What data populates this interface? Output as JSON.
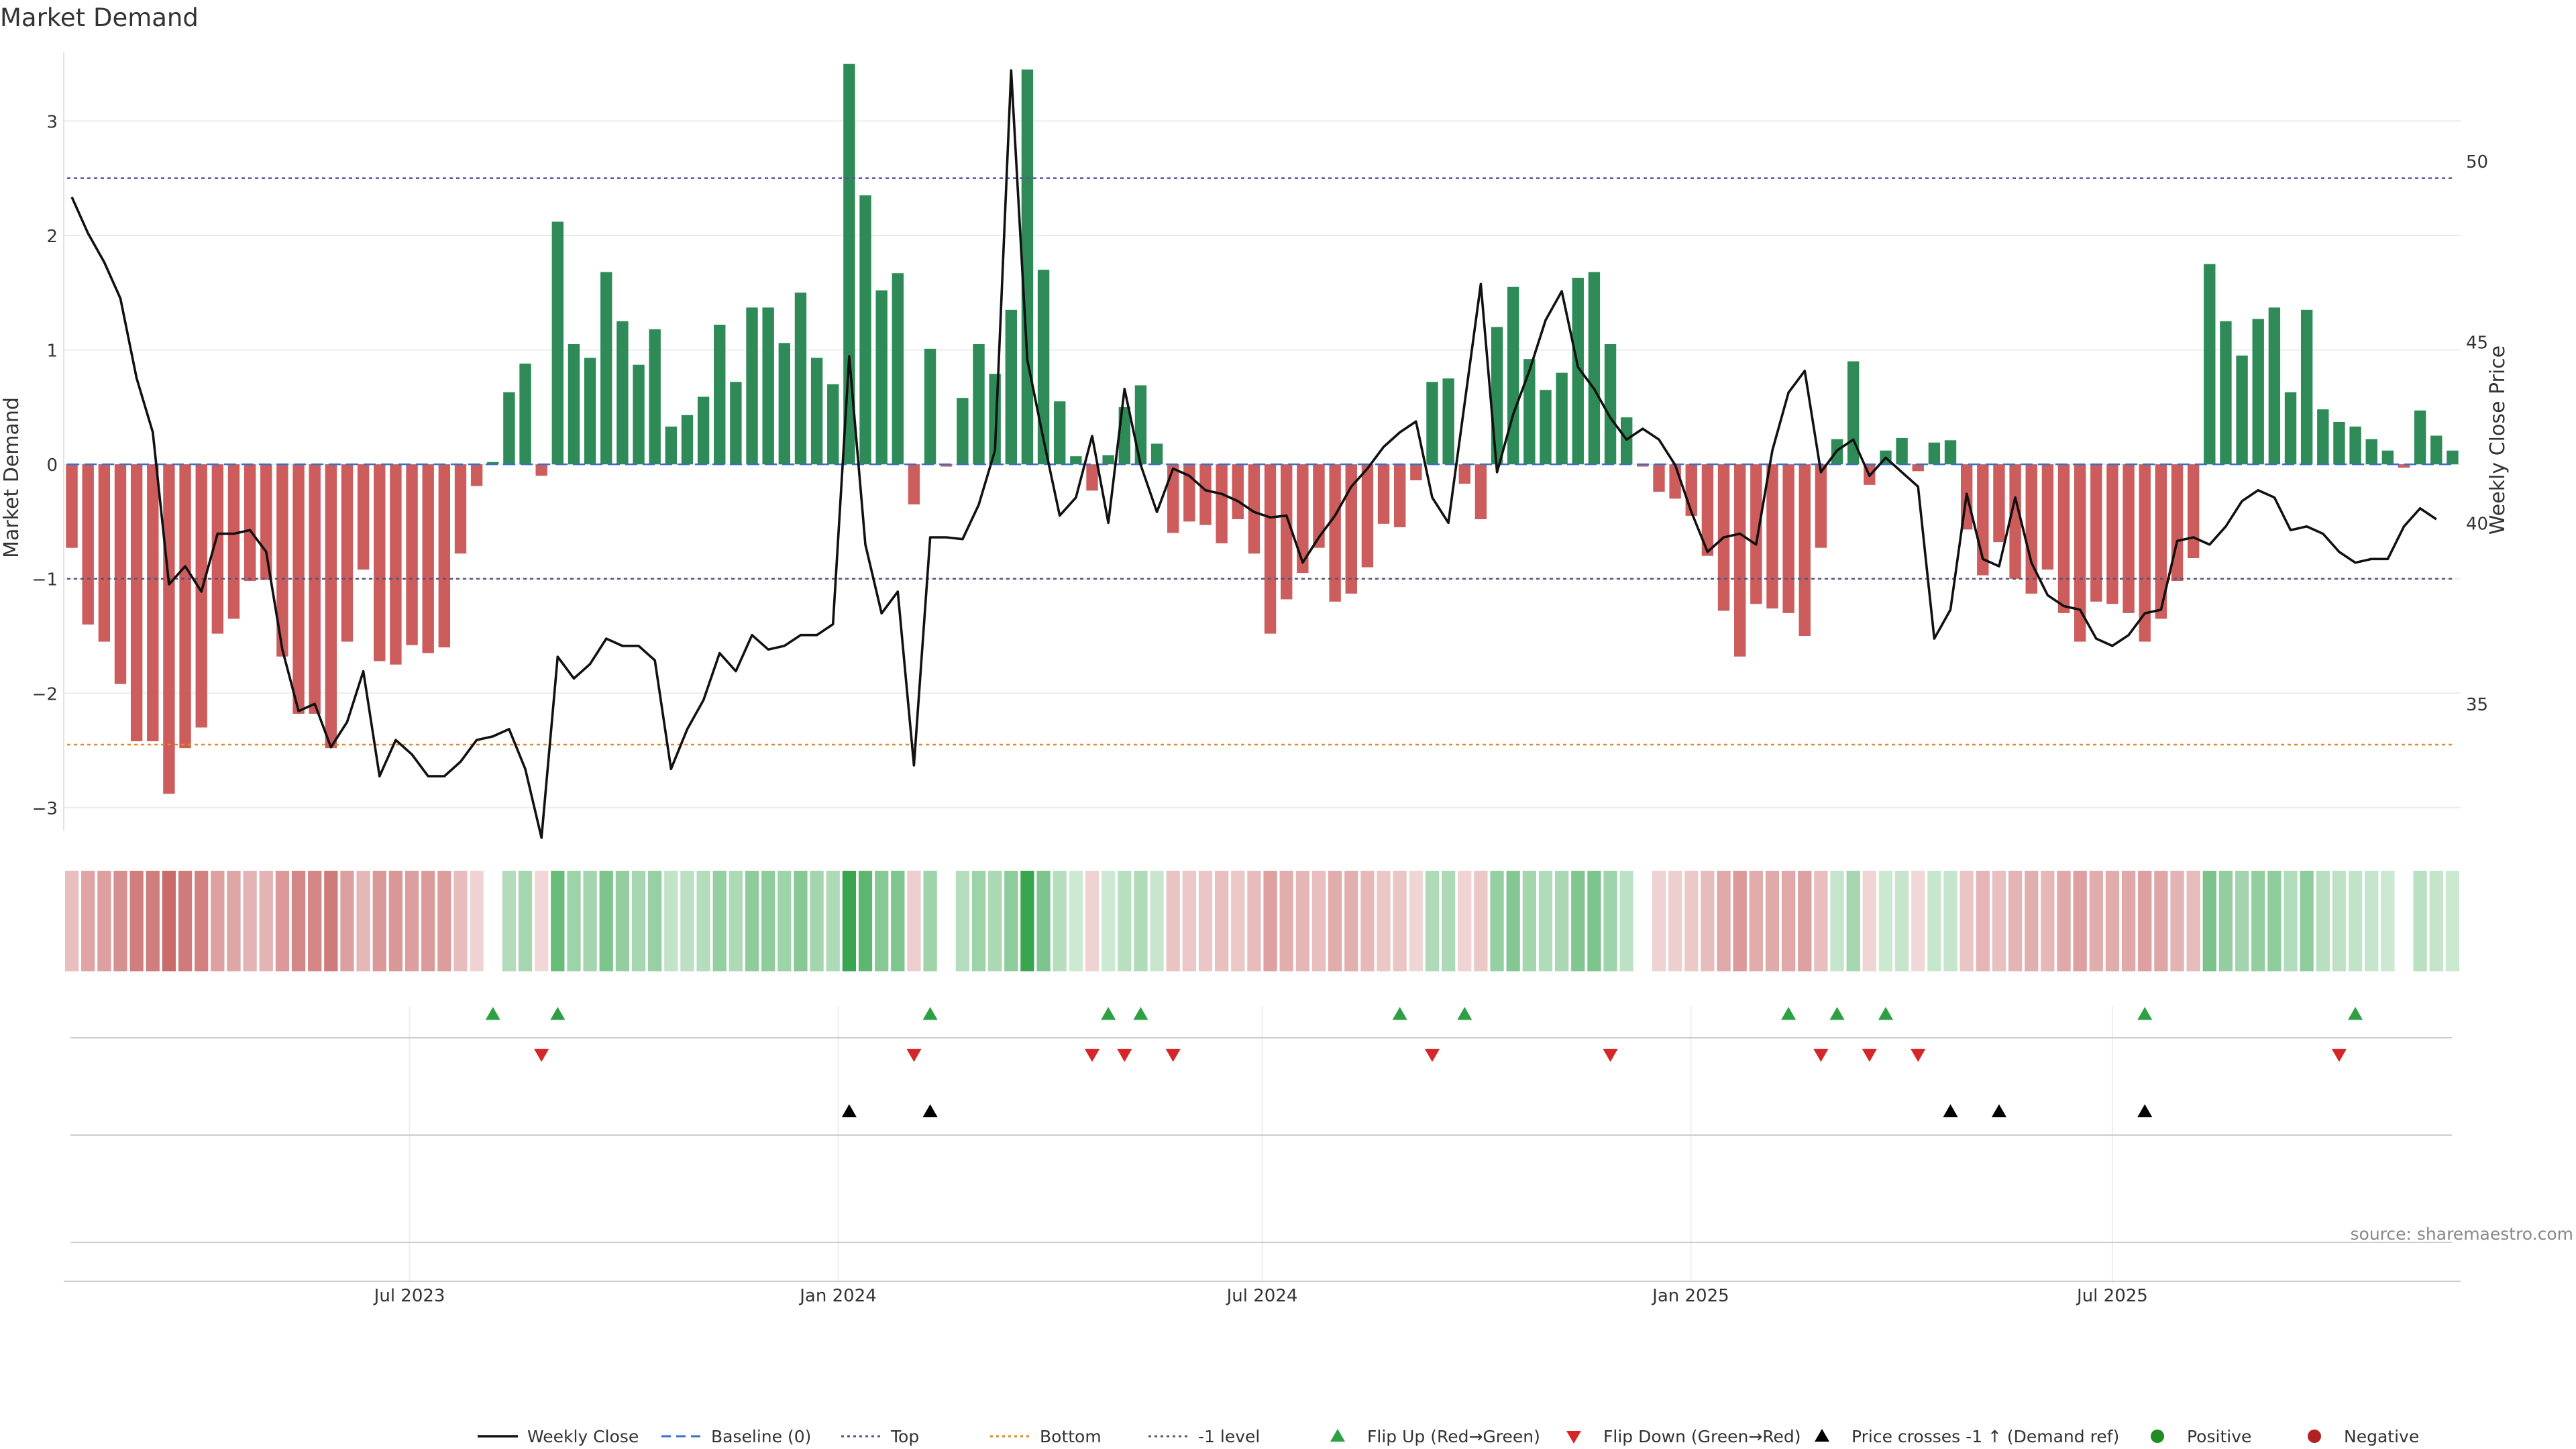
{
  "chart_data": {
    "type": "bar",
    "title": "Market Demand",
    "ylabel": "Market Demand",
    "y2label": "Weekly Close Price",
    "ylim": [
      -3.2,
      3.6
    ],
    "y2lim": [
      31.5,
      53.0
    ],
    "yticks": [
      3,
      2,
      1,
      0,
      -1,
      -2,
      -3
    ],
    "y2ticks": [
      50,
      45,
      40,
      35
    ],
    "date_range": [
      "2023-02-06",
      "2025-11-24"
    ],
    "xticks": [
      {
        "label": "Jul 2023",
        "date": "2023-07-01"
      },
      {
        "label": "Jan 2024",
        "date": "2024-01-01"
      },
      {
        "label": "Jul 2024",
        "date": "2024-07-01"
      },
      {
        "label": "Jan 2025",
        "date": "2025-01-01"
      },
      {
        "label": "Jul 2025",
        "date": "2025-07-01"
      }
    ],
    "reference_lines": [
      {
        "name": "Top",
        "value": 2.5,
        "color": "#5b4fa0"
      },
      {
        "name": "Bottom",
        "value": -2.45,
        "color": "#e08a2c"
      },
      {
        "name": "-1 level",
        "value": -1.0,
        "color": "#555577"
      },
      {
        "name": "Baseline (0)",
        "value": 0,
        "color": "#3a6fc4"
      }
    ],
    "demand_values": [
      -0.73,
      -1.4,
      -1.55,
      -1.92,
      -2.42,
      -2.42,
      -2.88,
      -2.48,
      -2.3,
      -1.48,
      -1.35,
      -1.02,
      -1.01,
      -1.68,
      -2.18,
      -2.18,
      -2.48,
      -1.55,
      -0.92,
      -1.72,
      -1.75,
      -1.58,
      -1.65,
      -1.6,
      -0.78,
      -0.19,
      0.02,
      0.63,
      0.88,
      -0.1,
      2.12,
      1.05,
      0.93,
      1.68,
      1.25,
      0.87,
      1.18,
      0.33,
      0.43,
      0.59,
      1.22,
      0.72,
      1.37,
      1.37,
      1.06,
      1.5,
      0.93,
      0.7,
      3.5,
      2.35,
      1.52,
      1.67,
      -0.35,
      1.01,
      -0.02,
      0.58,
      1.05,
      0.79,
      1.35,
      3.45,
      1.7,
      0.55,
      0.07,
      -0.23,
      0.08,
      0.5,
      0.69,
      0.18,
      -0.6,
      -0.5,
      -0.53,
      -0.69,
      -0.48,
      -0.78,
      -1.48,
      -1.18,
      -0.95,
      -0.73,
      -1.2,
      -1.13,
      -0.9,
      -0.52,
      -0.55,
      -0.14,
      0.72,
      0.75,
      -0.17,
      -0.48,
      1.2,
      1.55,
      0.92,
      0.65,
      0.8,
      1.63,
      1.68,
      1.05,
      0.41,
      -0.02,
      -0.24,
      -0.3,
      -0.45,
      -0.8,
      -1.28,
      -1.68,
      -1.22,
      -1.26,
      -1.3,
      -1.5,
      -0.73,
      0.22,
      0.9,
      -0.18,
      0.12,
      0.23,
      -0.06,
      0.19,
      0.21,
      -0.57,
      -0.97,
      -0.68,
      -1.0,
      -1.13,
      -0.92,
      -1.3,
      -1.55,
      -1.2,
      -1.22,
      -1.3,
      -1.55,
      -1.35,
      -1.02,
      -0.82,
      1.75,
      1.25,
      0.95,
      1.27,
      1.37,
      0.63,
      1.35,
      0.48,
      0.37,
      0.33,
      0.22,
      0.12,
      -0.03,
      0.47,
      0.25,
      0.12
    ],
    "weekly_close": [
      49.0,
      48.0,
      47.2,
      46.2,
      44.0,
      42.5,
      38.3,
      38.8,
      38.1,
      39.7,
      39.7,
      39.8,
      39.2,
      36.5,
      34.8,
      35.0,
      33.8,
      34.5,
      35.9,
      33.0,
      34.0,
      33.6,
      33.0,
      33.0,
      33.4,
      34.0,
      34.1,
      34.3,
      33.2,
      31.3,
      36.3,
      35.7,
      36.1,
      36.8,
      36.6,
      36.6,
      36.2,
      33.2,
      34.3,
      35.1,
      36.4,
      35.9,
      36.9,
      36.5,
      36.6,
      36.9,
      36.9,
      37.2,
      44.6,
      39.4,
      37.5,
      38.1,
      33.3,
      39.6,
      39.6,
      39.55,
      40.5,
      42.0,
      52.5,
      44.5,
      42.3,
      40.2,
      40.7,
      42.4,
      40.0,
      43.7,
      41.6,
      40.3,
      41.5,
      41.3,
      40.9,
      40.8,
      40.6,
      40.3,
      40.15,
      40.2,
      38.9,
      39.6,
      40.2,
      41.0,
      41.5,
      42.1,
      42.5,
      42.8,
      40.7,
      40.0,
      43.3,
      46.6,
      41.4,
      43.0,
      44.2,
      45.6,
      46.4,
      44.3,
      43.7,
      42.9,
      42.3,
      42.6,
      42.3,
      41.6,
      40.3,
      39.2,
      39.6,
      39.7,
      39.4,
      42.0,
      43.6,
      44.2,
      41.4,
      42.0,
      42.3,
      41.3,
      41.8,
      41.4,
      41.0,
      36.8,
      37.6,
      40.8,
      39.0,
      38.8,
      40.7,
      38.9,
      38.0,
      37.7,
      37.6,
      36.8,
      36.6,
      36.9,
      37.5,
      37.6,
      39.5,
      39.6,
      39.4,
      39.9,
      40.6,
      40.9,
      40.7,
      39.8,
      39.9,
      39.7,
      39.2,
      38.9,
      39.0,
      39.0,
      39.9,
      40.4,
      40.1
    ],
    "flip_up_weeks": [
      26,
      30,
      53,
      64,
      66,
      82,
      86,
      106,
      109,
      112,
      128,
      141
    ],
    "flip_down_weeks": [
      29,
      52,
      63,
      65,
      68,
      84,
      95,
      108,
      111,
      114,
      140
    ],
    "price_cross_weeks": [
      48,
      53,
      116,
      119,
      128
    ],
    "legend": [
      "Weekly Close",
      "Baseline (0)",
      "Top",
      "Bottom",
      "-1 level",
      "Flip Up (Red→Green)",
      "Flip Down (Green→Red)",
      "Price crosses -1 ↑ (Demand ref)",
      "Positive",
      "Negative"
    ],
    "annotation": "source: sharemaestro.com",
    "colors": {
      "positive": "#2e8b57",
      "negative": "#cd5c5c",
      "close": "#111111",
      "flip_up": "#2ea043",
      "flip_down": "#d62728",
      "cross": "#000000",
      "legend_positive": "#228b22",
      "legend_negative": "#b22222"
    }
  }
}
